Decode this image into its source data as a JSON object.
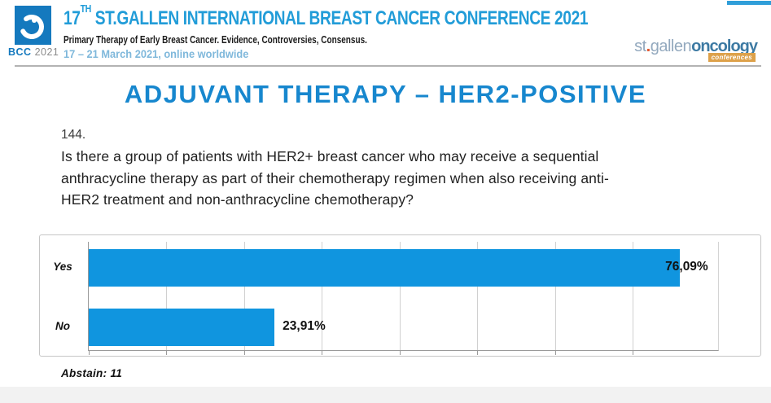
{
  "header": {
    "logo_square": {
      "bcc": "BCC",
      "year": "2021"
    },
    "title_num": "17",
    "title_sup": "TH",
    "title_rest": " ST.GALLEN INTERNATIONAL BREAST CANCER CONFERENCE 2021",
    "subtitle": "Primary Therapy of Early Breast Cancer. Evidence, Controversies, Consensus.",
    "dates": "17 – 21 March 2021, online worldwide",
    "brand": {
      "st": "st",
      "dot": ".",
      "gallen": "gallen",
      "oncology": "oncology",
      "badge": "conferences"
    }
  },
  "slide": {
    "title": "ADJUVANT THERAPY – HER2-POSITIVE",
    "question_number": "144.",
    "question_lines": [
      "Is there a group of patients with HER2+ breast cancer who may receive a sequential",
      "anthracycline therapy as part of their chemotherapy regimen when also receiving anti-",
      "HER2 treatment and non-anthracycline chemotherapy?"
    ],
    "abstain_label": "Abstain: 11"
  },
  "chart_data": {
    "type": "bar",
    "orientation": "horizontal",
    "categories": [
      "Yes",
      "No"
    ],
    "values": [
      76.09,
      23.91
    ],
    "value_labels": [
      "76,09%",
      "23,91%"
    ],
    "axis_max": 81,
    "gridline_step": 10,
    "grid": "vertical",
    "legend": "none",
    "bar_color": "#1095df",
    "abstain": 11
  },
  "colors": {
    "header_blue": "#219cd8",
    "title_blue": "#1787ce",
    "bar_blue": "#1095df",
    "dates_blue": "#7fb8db",
    "logo_blue": "#1479be",
    "badge_orange": "#dda14a",
    "brand_gray_blue": "#93a9be",
    "brand_oncology": "#3d7aa3"
  }
}
